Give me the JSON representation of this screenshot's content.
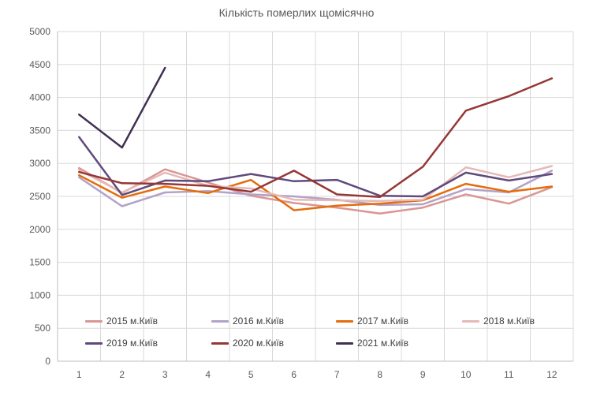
{
  "title": "Кількість померлих щомісячно",
  "chart_data": {
    "type": "line",
    "title": "Кількість померлих щомісячно",
    "categories": [
      "1",
      "2",
      "3",
      "4",
      "5",
      "6",
      "7",
      "8",
      "9",
      "10",
      "11",
      "12"
    ],
    "xlabel": "",
    "ylabel": "",
    "ylim": [
      0,
      5000
    ],
    "ytick_step": 500,
    "grid": true,
    "legend_position": "bottom-inside",
    "legend_rows": [
      [
        "2015 м.Київ",
        "2016 м.Київ",
        "2017 м.Київ",
        "2018 м.Київ"
      ],
      [
        "2019 м.Київ",
        "2020 м.Київ",
        "2021 м.Київ"
      ]
    ],
    "series": [
      {
        "name": "2015 м.Київ",
        "color": "#D99694",
        "values": [
          2930,
          2550,
          2910,
          2710,
          2510,
          2400,
          2330,
          2240,
          2330,
          2530,
          2390,
          2640
        ]
      },
      {
        "name": "2016 м.Київ",
        "color": "#B3A2C7",
        "values": [
          2790,
          2350,
          2560,
          2580,
          2530,
          2500,
          2450,
          2370,
          2380,
          2610,
          2560,
          2890
        ]
      },
      {
        "name": "2017 м.Київ",
        "color": "#E46C0A",
        "values": [
          2820,
          2480,
          2650,
          2550,
          2750,
          2290,
          2360,
          2390,
          2440,
          2690,
          2570,
          2650
        ]
      },
      {
        "name": "2018 м.Київ",
        "color": "#E5B9B7",
        "values": [
          2900,
          2560,
          2860,
          2660,
          2620,
          2450,
          2440,
          2430,
          2450,
          2940,
          2790,
          2960
        ]
      },
      {
        "name": "2019 м.Київ",
        "color": "#604A7B",
        "values": [
          3400,
          2520,
          2740,
          2730,
          2840,
          2730,
          2750,
          2510,
          2500,
          2860,
          2740,
          2840
        ]
      },
      {
        "name": "2020 м.Київ",
        "color": "#953735",
        "values": [
          2870,
          2700,
          2690,
          2660,
          2570,
          2890,
          2530,
          2490,
          2950,
          3800,
          4020,
          4290
        ]
      },
      {
        "name": "2021 м.Київ",
        "color": "#403151",
        "values": [
          3740,
          3240,
          4450,
          null,
          null,
          null,
          null,
          null,
          null,
          null,
          null,
          null
        ]
      }
    ]
  }
}
